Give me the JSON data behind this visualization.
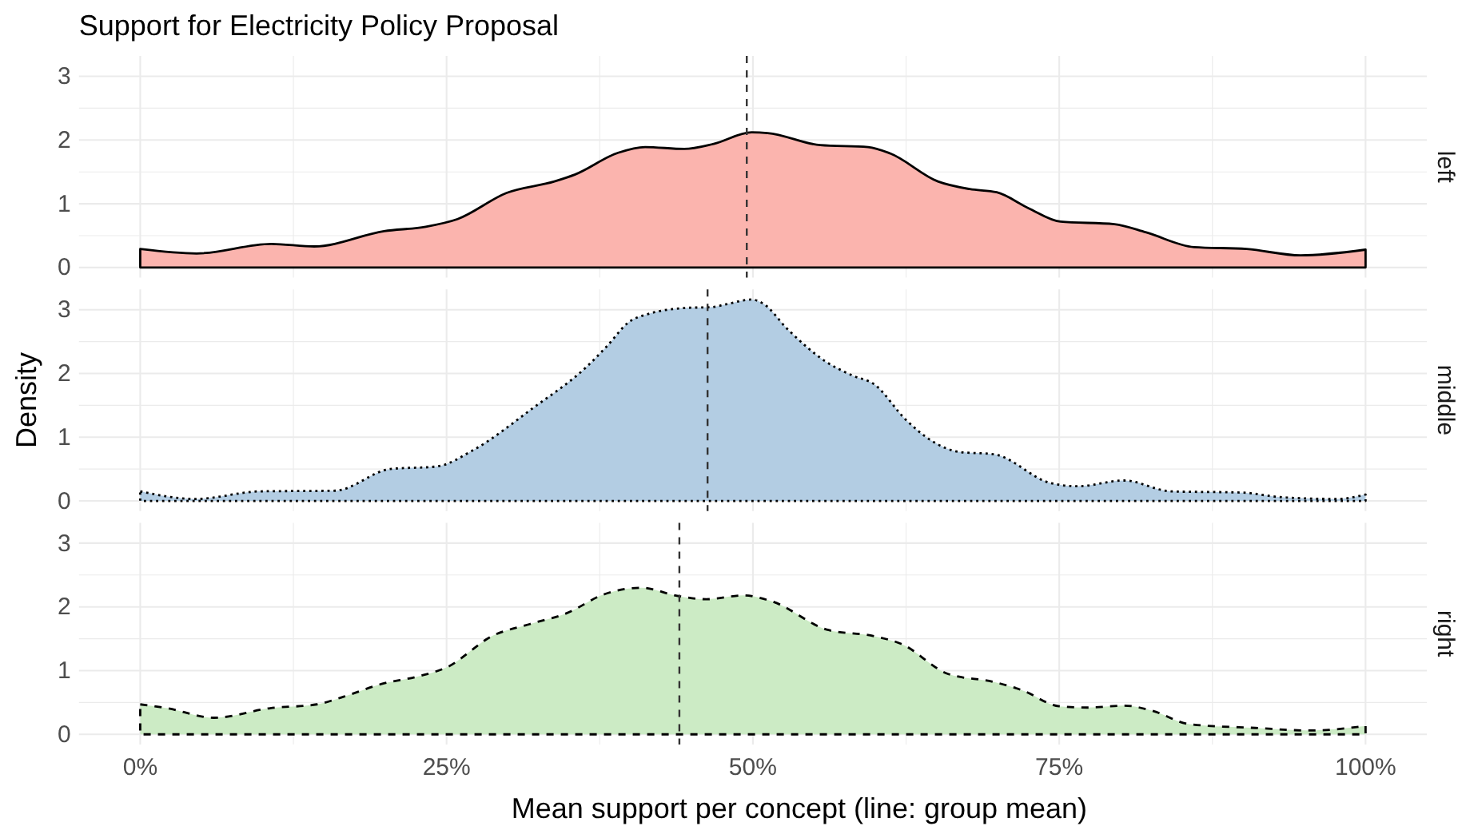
{
  "chart_data": [
    {
      "type": "area",
      "title": "Support for Electricity Policy Proposal",
      "x": [
        0,
        0.046,
        0.107,
        0.142,
        0.199,
        0.233,
        0.259,
        0.299,
        0.338,
        0.355,
        0.39,
        0.412,
        0.444,
        0.468,
        0.499,
        0.512,
        0.555,
        0.594,
        0.612,
        0.651,
        0.677,
        0.699,
        0.725,
        0.751,
        0.795,
        0.821,
        0.86,
        0.903,
        0.947,
        1
      ],
      "series": [
        {
          "name": "left",
          "color": "#fbb4ae",
          "values": [
            0.29,
            0.22,
            0.37,
            0.33,
            0.57,
            0.64,
            0.76,
            1.17,
            1.35,
            1.46,
            1.8,
            1.89,
            1.86,
            1.94,
            2.12,
            2.11,
            1.92,
            1.89,
            1.79,
            1.35,
            1.23,
            1.18,
            0.93,
            0.72,
            0.68,
            0.55,
            0.32,
            0.29,
            0.19,
            0.28
          ]
        }
      ],
      "xlim": [
        -0.05,
        1.05
      ],
      "xticks": [
        0,
        {
          "value": 0.125,
          "label": null
        },
        0.25,
        {
          "value": 0.375,
          "label": null
        },
        0.5,
        {
          "value": 0.625,
          "label": null
        },
        0.75,
        {
          "value": 0.875,
          "label": null
        },
        1
      ],
      "ylim": [
        -0.16,
        3.32
      ],
      "yticks": [
        0,
        {
          "value": 0.5,
          "label": null
        },
        1,
        {
          "value": 1.5,
          "label": null
        },
        2,
        {
          "value": 2.5,
          "label": null
        },
        3
      ],
      "grid": true,
      "line_style": "solid",
      "tick_labels": "y",
      "ref_lines": [
        {
          "axis": "x",
          "value": 0.495,
          "color": "#333333",
          "line_style": "dashed"
        }
      ]
    },
    {
      "type": "area",
      "ylabel": "Density",
      "x": [
        0,
        0.045,
        0.098,
        0.159,
        0.204,
        0.242,
        0.272,
        0.32,
        0.364,
        0.381,
        0.399,
        0.414,
        0.447,
        0.466,
        0.477,
        0.499,
        0.508,
        0.529,
        0.56,
        0.581,
        0.599,
        0.625,
        0.647,
        0.668,
        0.697,
        0.743,
        0.765,
        0.803,
        0.841,
        0.9,
        0.93,
        0.977,
        1
      ],
      "series": [
        {
          "name": "middle",
          "color": "#b3cde3",
          "values": [
            0.15,
            0.03,
            0.15,
            0.16,
            0.5,
            0.54,
            0.8,
            1.45,
            2.1,
            2.43,
            2.81,
            2.93,
            3.03,
            3.04,
            3.08,
            3.16,
            3.1,
            2.68,
            2.18,
            1.97,
            1.83,
            1.27,
            0.93,
            0.77,
            0.73,
            0.28,
            0.23,
            0.32,
            0.15,
            0.13,
            0.06,
            0.03,
            0.1
          ]
        }
      ],
      "xlim": [
        -0.05,
        1.05
      ],
      "xticks": [
        0,
        {
          "value": 0.125,
          "label": null
        },
        0.25,
        {
          "value": 0.375,
          "label": null
        },
        0.5,
        {
          "value": 0.625,
          "label": null
        },
        0.75,
        {
          "value": 0.875,
          "label": null
        },
        1
      ],
      "ylim": [
        -0.16,
        3.32
      ],
      "yticks": [
        0,
        {
          "value": 0.5,
          "label": null
        },
        1,
        {
          "value": 1.5,
          "label": null
        },
        2,
        {
          "value": 2.5,
          "label": null
        },
        3
      ],
      "grid": true,
      "line_style": "dotted",
      "tick_labels": "y",
      "ref_lines": [
        {
          "axis": "x",
          "value": 0.463,
          "color": "#333333",
          "line_style": "dashed"
        }
      ]
    },
    {
      "type": "area",
      "xlabel": "Mean support per concept (line: group mean)",
      "x": [
        0,
        0.022,
        0.06,
        0.106,
        0.144,
        0.166,
        0.197,
        0.227,
        0.25,
        0.288,
        0.318,
        0.348,
        0.379,
        0.409,
        0.439,
        0.462,
        0.492,
        0.515,
        0.561,
        0.599,
        0.621,
        0.659,
        0.697,
        0.72,
        0.75,
        0.773,
        0.803,
        0.826,
        0.856,
        0.91,
        0.955,
        1
      ],
      "series": [
        {
          "name": "right",
          "color": "#ccebc5",
          "values": [
            0.47,
            0.41,
            0.26,
            0.41,
            0.47,
            0.59,
            0.79,
            0.91,
            1.05,
            1.55,
            1.73,
            1.9,
            2.2,
            2.3,
            2.17,
            2.12,
            2.18,
            2.09,
            1.64,
            1.54,
            1.42,
            0.95,
            0.82,
            0.69,
            0.44,
            0.42,
            0.45,
            0.37,
            0.16,
            0.1,
            0.06,
            0.13
          ]
        }
      ],
      "xlim": [
        -0.05,
        1.05
      ],
      "xticks": [
        {
          "value": 0,
          "label": "0%"
        },
        {
          "value": 0.125,
          "label": null
        },
        {
          "value": 0.25,
          "label": "25%"
        },
        {
          "value": 0.375,
          "label": null
        },
        {
          "value": 0.5,
          "label": "50%"
        },
        {
          "value": 0.625,
          "label": null
        },
        {
          "value": 0.75,
          "label": "75%"
        },
        {
          "value": 0.875,
          "label": null
        },
        {
          "value": 1,
          "label": "100%"
        }
      ],
      "ylim": [
        -0.16,
        3.32
      ],
      "yticks": [
        0,
        {
          "value": 0.5,
          "label": null
        },
        1,
        {
          "value": 1.5,
          "label": null
        },
        2,
        {
          "value": 2.5,
          "label": null
        },
        3
      ],
      "grid": true,
      "line_style": "dashed",
      "ref_lines": [
        {
          "axis": "x",
          "value": 0.44,
          "color": "#333333",
          "line_style": "dashed"
        }
      ]
    }
  ]
}
